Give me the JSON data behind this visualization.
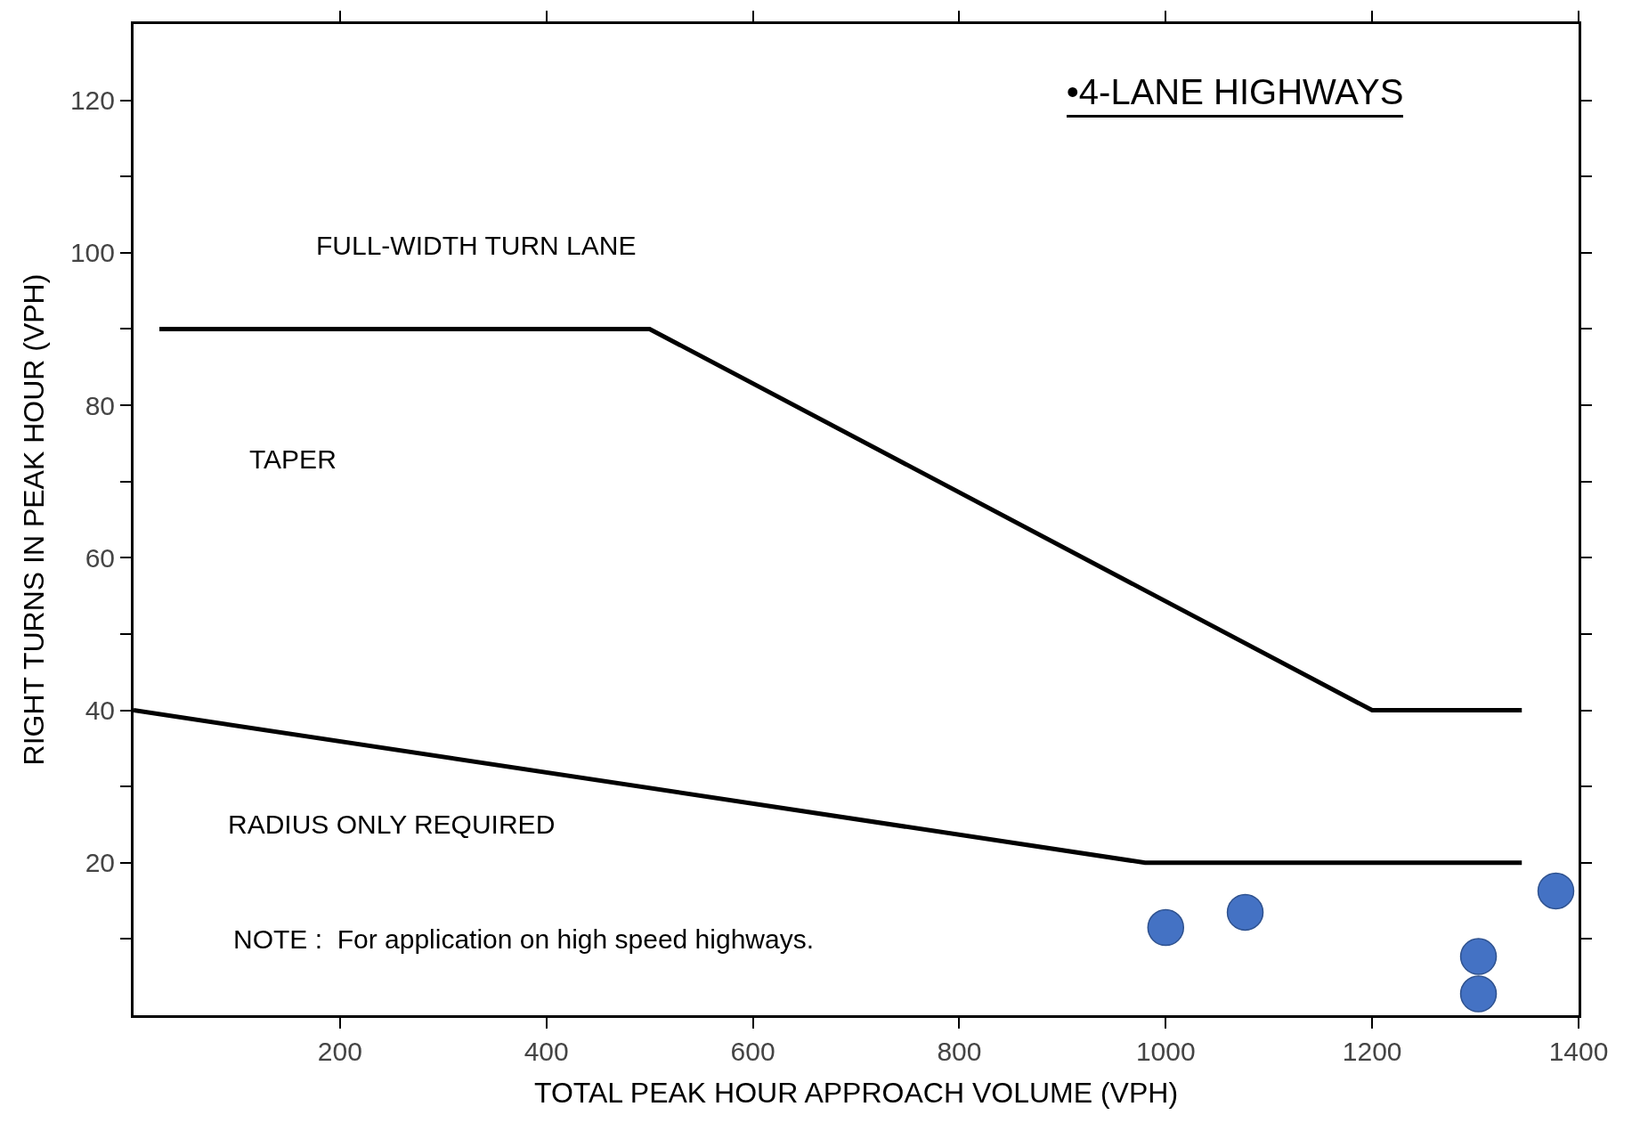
{
  "chart_data": {
    "type": "line",
    "title": "•4-LANE HIGHWAYS",
    "xlabel": "TOTAL PEAK HOUR APPROACH VOLUME (VPH)",
    "ylabel": "RIGHT TURNS IN PEAK HOUR (VPH)",
    "annotations": [
      "FULL-WIDTH TURN LANE",
      "TAPER",
      "RADIUS ONLY REQUIRED",
      "NOTE :  For application on high speed highways."
    ],
    "series": [
      {
        "color": "#000000",
        "x": [
          25,
          500,
          1200,
          1345
        ],
        "values": [
          90,
          90,
          40,
          40
        ]
      },
      {
        "color": "#000000",
        "x": [
          0,
          980,
          1345
        ],
        "values": [
          40,
          20,
          20
        ]
      },
      {
        "type": "scatter",
        "marker": "circle",
        "color": "#4472c4",
        "x": [
          1000,
          1077,
          1303,
          1303,
          1378
        ],
        "values": [
          11.5,
          13.5,
          7.7,
          2.8,
          16.3
        ]
      }
    ],
    "xlim": [
      0,
      1400
    ],
    "xticks": [
      200,
      400,
      600,
      800,
      1000,
      1200,
      1400
    ],
    "ylim": [
      0,
      130
    ],
    "yticks": [
      {
        "value": 10,
        "label": null
      },
      20,
      {
        "value": 30,
        "label": null
      },
      40,
      {
        "value": 50,
        "label": null
      },
      60,
      {
        "value": 70,
        "label": null
      },
      80,
      {
        "value": 90,
        "label": null
      },
      100,
      {
        "value": 110,
        "label": null
      },
      120
    ],
    "grid": false,
    "legend": false,
    "line_style": "solid"
  }
}
